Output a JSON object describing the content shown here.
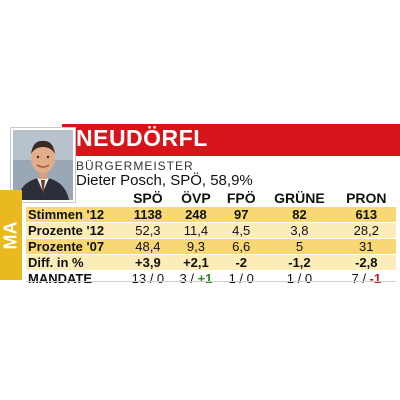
{
  "header": {
    "municipality": "NEUDÖRFL",
    "side_label": "MA",
    "role": "BÜRGERMEISTER",
    "mayor": "Dieter Posch, SPÖ, 58,9%"
  },
  "colors": {
    "title_bar": "#d8141b",
    "side_tab": "#e9b91f",
    "row_dark": "#f7d874",
    "row_light": "#fbecb8",
    "positive": "#2e8b22",
    "negative": "#cf1a1f"
  },
  "table": {
    "parties": [
      "SPÖ",
      "ÖVP",
      "FPÖ",
      "GRÜNE",
      "PRON"
    ],
    "rows": [
      {
        "label": "Stimmen '12",
        "values": [
          "1138",
          "248",
          "97",
          "82",
          "613"
        ]
      },
      {
        "label": "Prozente '12",
        "values": [
          "52,3",
          "11,4",
          "4,5",
          "3,8",
          "28,2"
        ]
      },
      {
        "label": "Prozente '07",
        "values": [
          "48,4",
          "9,3",
          "6,6",
          "5",
          "31"
        ]
      },
      {
        "label": "Diff. in %",
        "values": [
          "+3,9",
          "+2,1",
          "-2",
          "-1,2",
          "-2,8"
        ]
      }
    ],
    "mandate": {
      "label": "MANDATE",
      "values": [
        {
          "seats": "13",
          "change": "0"
        },
        {
          "seats": "3",
          "change": "+1"
        },
        {
          "seats": "1",
          "change": "0"
        },
        {
          "seats": "1",
          "change": "0"
        },
        {
          "seats": "7",
          "change": "-1"
        }
      ]
    }
  }
}
